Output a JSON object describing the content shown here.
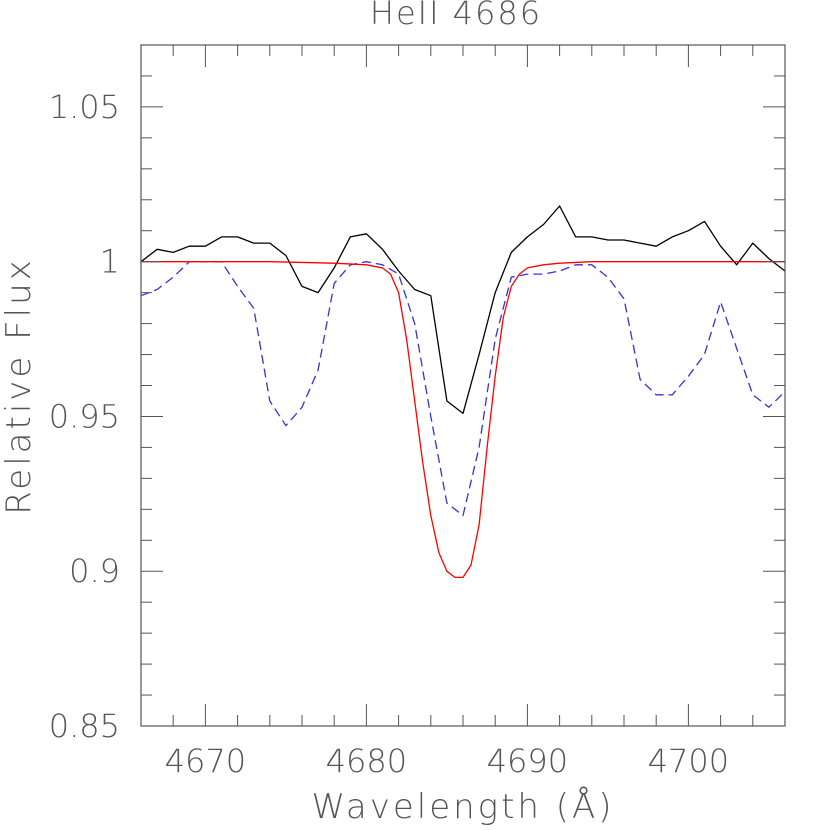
{
  "chart_data": {
    "type": "line",
    "title": "HeII 4686",
    "xlabel": "Wavelength (Å)",
    "ylabel": "Relative Flux",
    "xlim": [
      4666,
      4706
    ],
    "ylim": [
      0.85,
      1.07
    ],
    "x_major_ticks": [
      4670,
      4680,
      4690,
      4700
    ],
    "x_tick_labels": [
      "4670",
      "4680",
      "4690",
      "4700"
    ],
    "x_minor_step": 2,
    "y_major_ticks": [
      0.85,
      0.9,
      0.95,
      1.0,
      1.05
    ],
    "y_tick_labels": [
      "0.85",
      "0.9",
      "0.95",
      "1",
      "1.05"
    ],
    "y_minor_step": 0.01,
    "grid": false,
    "series": [
      {
        "style": "solid",
        "color": "#000000",
        "x": [
          4666.0,
          4667.0,
          4668.0,
          4669.0,
          4670.0,
          4671.0,
          4672.0,
          4673.0,
          4674.0,
          4675.0,
          4676.0,
          4677.0,
          4678.0,
          4679.0,
          4680.0,
          4681.0,
          4682.0,
          4683.0,
          4684.0,
          4685.0,
          4686.0,
          4687.0,
          4688.0,
          4689.0,
          4690.0,
          4691.0,
          4692.0,
          4693.0,
          4694.0,
          4695.0,
          4696.0,
          4697.0,
          4698.0,
          4699.0,
          4700.0,
          4701.0,
          4702.0,
          4703.0,
          4704.0,
          4705.0,
          4706.0
        ],
        "y": [
          1.0,
          1.004,
          1.003,
          1.005,
          1.005,
          1.008,
          1.008,
          1.006,
          1.006,
          1.002,
          0.992,
          0.99,
          0.998,
          1.008,
          1.009,
          1.004,
          0.997,
          0.991,
          0.989,
          0.955,
          0.951,
          0.97,
          0.99,
          1.003,
          1.008,
          1.012,
          1.018,
          1.008,
          1.008,
          1.007,
          1.007,
          1.006,
          1.005,
          1.008,
          1.01,
          1.013,
          1.005,
          0.999,
          1.006,
          1.001,
          0.997
        ]
      },
      {
        "style": "dashed",
        "color": "#3333dd",
        "x": [
          4666.0,
          4667.0,
          4668.0,
          4669.0,
          4670.0,
          4671.0,
          4672.0,
          4673.0,
          4674.0,
          4675.0,
          4676.0,
          4677.0,
          4678.0,
          4679.0,
          4680.0,
          4681.0,
          4682.0,
          4683.0,
          4684.0,
          4685.0,
          4686.0,
          4687.0,
          4688.0,
          4689.0,
          4690.0,
          4691.0,
          4692.0,
          4693.0,
          4694.0,
          4695.0,
          4696.0,
          4697.0,
          4698.0,
          4699.0,
          4700.0,
          4701.0,
          4702.0,
          4703.0,
          4704.0,
          4705.0,
          4706.0
        ],
        "y": [
          0.989,
          0.991,
          0.995,
          1.0,
          1.0,
          1.0,
          0.992,
          0.985,
          0.955,
          0.947,
          0.953,
          0.965,
          0.993,
          0.999,
          1.0,
          0.999,
          0.996,
          0.98,
          0.95,
          0.922,
          0.918,
          0.94,
          0.975,
          0.995,
          0.996,
          0.996,
          0.997,
          0.999,
          0.999,
          0.995,
          0.988,
          0.962,
          0.957,
          0.957,
          0.963,
          0.97,
          0.987,
          0.972,
          0.957,
          0.953,
          0.958
        ]
      },
      {
        "style": "solid",
        "color": "#ff0000",
        "x": [
          4666.0,
          4670.0,
          4674.0,
          4678.0,
          4680.0,
          4681.0,
          4681.5,
          4682.0,
          4682.5,
          4683.0,
          4683.5,
          4684.0,
          4684.5,
          4685.0,
          4685.5,
          4686.0,
          4686.5,
          4687.0,
          4687.5,
          4688.0,
          4688.5,
          4689.0,
          4689.5,
          4690.0,
          4691.0,
          4692.0,
          4694.0,
          4698.0,
          4702.0,
          4706.0
        ],
        "y": [
          1.0,
          1.0,
          1.0,
          0.9995,
          0.999,
          0.998,
          0.996,
          0.99,
          0.975,
          0.955,
          0.935,
          0.918,
          0.906,
          0.9,
          0.898,
          0.898,
          0.902,
          0.915,
          0.94,
          0.963,
          0.982,
          0.992,
          0.996,
          0.998,
          0.999,
          0.9995,
          1.0,
          1.0,
          1.0,
          1.0
        ]
      }
    ]
  }
}
